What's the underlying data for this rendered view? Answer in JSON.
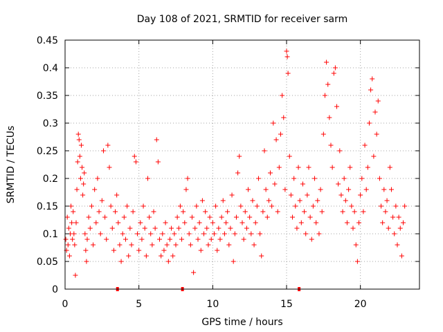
{
  "chart_data": {
    "type": "scatter",
    "title": "Day 108 of 2021, SRMTID for receiver sarm",
    "xlabel": "GPS time / hours",
    "ylabel": "SRMTID / TECUs",
    "xlim": [
      0,
      24
    ],
    "ylim": [
      0,
      0.45
    ],
    "x_ticks": [
      0,
      5,
      10,
      15,
      20
    ],
    "x_tick_labels": [
      "0",
      "5",
      "10",
      "15",
      "20"
    ],
    "y_ticks": [
      0,
      0.05,
      0.1,
      0.15,
      0.2,
      0.25,
      0.3,
      0.35,
      0.4,
      0.45
    ],
    "y_tick_labels": [
      "0",
      "0.05",
      "0.1",
      "0.15",
      "0.2",
      "0.25",
      "0.3",
      "0.35",
      "0.4",
      "0.45"
    ],
    "grid": true,
    "marker": "+",
    "color": "#ff0000",
    "zero_markers_x": [
      3.55,
      7.95,
      15.85
    ],
    "series": [
      {
        "name": "SRMTID",
        "points": [
          [
            0.05,
            0.09
          ],
          [
            0.1,
            0.07
          ],
          [
            0.15,
            0.13
          ],
          [
            0.2,
            0.08
          ],
          [
            0.25,
            0.11
          ],
          [
            0.3,
            0.06
          ],
          [
            0.35,
            0.1
          ],
          [
            0.4,
            0.15
          ],
          [
            0.45,
            0.12
          ],
          [
            0.5,
            0.09
          ],
          [
            0.55,
            0.14
          ],
          [
            0.6,
            0.1
          ],
          [
            0.65,
            0.08
          ],
          [
            0.7,
            0.025
          ],
          [
            0.75,
            0.12
          ],
          [
            0.8,
            0.18
          ],
          [
            0.85,
            0.23
          ],
          [
            0.9,
            0.28
          ],
          [
            0.95,
            0.27
          ],
          [
            1.0,
            0.24
          ],
          [
            1.05,
            0.2
          ],
          [
            1.1,
            0.26
          ],
          [
            1.15,
            0.22
          ],
          [
            1.2,
            0.17
          ],
          [
            1.25,
            0.19
          ],
          [
            1.3,
            0.21
          ],
          [
            1.35,
            0.1
          ],
          [
            1.4,
            0.07
          ],
          [
            1.45,
            0.05
          ],
          [
            1.5,
            0.09
          ],
          [
            1.6,
            0.13
          ],
          [
            1.7,
            0.11
          ],
          [
            1.8,
            0.15
          ],
          [
            1.9,
            0.08
          ],
          [
            2.0,
            0.18
          ],
          [
            2.1,
            0.12
          ],
          [
            2.2,
            0.2
          ],
          [
            2.3,
            0.14
          ],
          [
            2.4,
            0.1
          ],
          [
            2.5,
            0.16
          ],
          [
            2.6,
            0.25
          ],
          [
            2.7,
            0.13
          ],
          [
            2.8,
            0.09
          ],
          [
            2.9,
            0.26
          ],
          [
            3.0,
            0.22
          ],
          [
            3.1,
            0.15
          ],
          [
            3.2,
            0.11
          ],
          [
            3.3,
            0.07
          ],
          [
            3.4,
            0.14
          ],
          [
            3.5,
            0.17
          ],
          [
            3.6,
            0.12
          ],
          [
            3.7,
            0.08
          ],
          [
            3.8,
            0.05
          ],
          [
            3.9,
            0.1
          ],
          [
            4.0,
            0.13
          ],
          [
            4.1,
            0.09
          ],
          [
            4.2,
            0.15
          ],
          [
            4.3,
            0.06
          ],
          [
            4.4,
            0.11
          ],
          [
            4.5,
            0.08
          ],
          [
            4.6,
            0.14
          ],
          [
            4.7,
            0.24
          ],
          [
            4.8,
            0.23
          ],
          [
            4.9,
            0.1
          ],
          [
            5.0,
            0.07
          ],
          [
            5.1,
            0.12
          ],
          [
            5.2,
            0.09
          ],
          [
            5.3,
            0.15
          ],
          [
            5.4,
            0.11
          ],
          [
            5.5,
            0.06
          ],
          [
            5.6,
            0.2
          ],
          [
            5.7,
            0.13
          ],
          [
            5.8,
            0.1
          ],
          [
            5.9,
            0.08
          ],
          [
            6.0,
            0.14
          ],
          [
            6.1,
            0.11
          ],
          [
            6.2,
            0.27
          ],
          [
            6.3,
            0.23
          ],
          [
            6.4,
            0.09
          ],
          [
            6.5,
            0.06
          ],
          [
            6.6,
            0.1
          ],
          [
            6.7,
            0.07
          ],
          [
            6.8,
            0.12
          ],
          [
            6.9,
            0.08
          ],
          [
            7.0,
            0.05
          ],
          [
            7.1,
            0.09
          ],
          [
            7.2,
            0.11
          ],
          [
            7.3,
            0.06
          ],
          [
            7.4,
            0.1
          ],
          [
            7.5,
            0.08
          ],
          [
            7.6,
            0.13
          ],
          [
            7.7,
            0.11
          ],
          [
            7.8,
            0.15
          ],
          [
            7.9,
            0.09
          ],
          [
            8.0,
            0.14
          ],
          [
            8.1,
            0.12
          ],
          [
            8.2,
            0.18
          ],
          [
            8.3,
            0.2
          ],
          [
            8.4,
            0.1
          ],
          [
            8.5,
            0.08
          ],
          [
            8.6,
            0.13
          ],
          [
            8.7,
            0.03
          ],
          [
            8.8,
            0.11
          ],
          [
            8.9,
            0.15
          ],
          [
            9.0,
            0.09
          ],
          [
            9.1,
            0.12
          ],
          [
            9.2,
            0.07
          ],
          [
            9.3,
            0.16
          ],
          [
            9.4,
            0.1
          ],
          [
            9.5,
            0.14
          ],
          [
            9.6,
            0.11
          ],
          [
            9.7,
            0.08
          ],
          [
            9.8,
            0.13
          ],
          [
            9.9,
            0.09
          ],
          [
            10.0,
            0.12
          ],
          [
            10.1,
            0.1
          ],
          [
            10.2,
            0.15
          ],
          [
            10.3,
            0.07
          ],
          [
            10.4,
            0.11
          ],
          [
            10.5,
            0.09
          ],
          [
            10.6,
            0.13
          ],
          [
            10.7,
            0.16
          ],
          [
            10.8,
            0.1
          ],
          [
            10.9,
            0.12
          ],
          [
            11.0,
            0.14
          ],
          [
            11.1,
            0.08
          ],
          [
            11.2,
            0.11
          ],
          [
            11.3,
            0.17
          ],
          [
            11.4,
            0.05
          ],
          [
            11.5,
            0.1
          ],
          [
            11.6,
            0.13
          ],
          [
            11.7,
            0.21
          ],
          [
            11.8,
            0.24
          ],
          [
            11.9,
            0.15
          ],
          [
            12.0,
            0.12
          ],
          [
            12.1,
            0.09
          ],
          [
            12.2,
            0.14
          ],
          [
            12.3,
            0.11
          ],
          [
            12.4,
            0.18
          ],
          [
            12.5,
            0.13
          ],
          [
            12.6,
            0.1
          ],
          [
            12.7,
            0.16
          ],
          [
            12.8,
            0.08
          ],
          [
            12.9,
            0.12
          ],
          [
            13.0,
            0.15
          ],
          [
            13.1,
            0.2
          ],
          [
            13.2,
            0.1
          ],
          [
            13.3,
            0.06
          ],
          [
            13.4,
            0.14
          ],
          [
            13.5,
            0.25
          ],
          [
            13.6,
            0.18
          ],
          [
            13.7,
            0.13
          ],
          [
            13.8,
            0.16
          ],
          [
            13.9,
            0.21
          ],
          [
            14.0,
            0.15
          ],
          [
            14.1,
            0.3
          ],
          [
            14.2,
            0.19
          ],
          [
            14.3,
            0.27
          ],
          [
            14.4,
            0.14
          ],
          [
            14.5,
            0.22
          ],
          [
            14.6,
            0.28
          ],
          [
            14.7,
            0.35
          ],
          [
            14.8,
            0.31
          ],
          [
            14.9,
            0.18
          ],
          [
            15.0,
            0.43
          ],
          [
            15.05,
            0.42
          ],
          [
            15.1,
            0.39
          ],
          [
            15.2,
            0.24
          ],
          [
            15.3,
            0.17
          ],
          [
            15.4,
            0.13
          ],
          [
            15.5,
            0.2
          ],
          [
            15.6,
            0.15
          ],
          [
            15.7,
            0.11
          ],
          [
            15.8,
            0.22
          ],
          [
            15.9,
            0.16
          ],
          [
            16.0,
            0.12
          ],
          [
            16.1,
            0.19
          ],
          [
            16.2,
            0.14
          ],
          [
            16.3,
            0.1
          ],
          [
            16.4,
            0.17
          ],
          [
            16.5,
            0.22
          ],
          [
            16.6,
            0.13
          ],
          [
            16.7,
            0.09
          ],
          [
            16.8,
            0.15
          ],
          [
            16.9,
            0.2
          ],
          [
            17.0,
            0.12
          ],
          [
            17.1,
            0.16
          ],
          [
            17.2,
            0.1
          ],
          [
            17.3,
            0.18
          ],
          [
            17.4,
            0.14
          ],
          [
            17.5,
            0.28
          ],
          [
            17.6,
            0.35
          ],
          [
            17.7,
            0.41
          ],
          [
            17.8,
            0.37
          ],
          [
            17.9,
            0.31
          ],
          [
            18.0,
            0.26
          ],
          [
            18.1,
            0.22
          ],
          [
            18.2,
            0.39
          ],
          [
            18.3,
            0.4
          ],
          [
            18.4,
            0.33
          ],
          [
            18.5,
            0.19
          ],
          [
            18.6,
            0.25
          ],
          [
            18.7,
            0.17
          ],
          [
            18.8,
            0.14
          ],
          [
            18.9,
            0.2
          ],
          [
            19.0,
            0.16
          ],
          [
            19.1,
            0.12
          ],
          [
            19.2,
            0.18
          ],
          [
            19.3,
            0.22
          ],
          [
            19.4,
            0.15
          ],
          [
            19.5,
            0.11
          ],
          [
            19.6,
            0.14
          ],
          [
            19.7,
            0.08
          ],
          [
            19.8,
            0.05
          ],
          [
            19.9,
            0.12
          ],
          [
            20.0,
            0.17
          ],
          [
            20.1,
            0.2
          ],
          [
            20.2,
            0.14
          ],
          [
            20.3,
            0.26
          ],
          [
            20.4,
            0.18
          ],
          [
            20.5,
            0.22
          ],
          [
            20.6,
            0.3
          ],
          [
            20.7,
            0.36
          ],
          [
            20.8,
            0.38
          ],
          [
            20.9,
            0.24
          ],
          [
            21.0,
            0.32
          ],
          [
            21.1,
            0.28
          ],
          [
            21.2,
            0.34
          ],
          [
            21.3,
            0.2
          ],
          [
            21.4,
            0.15
          ],
          [
            21.5,
            0.12
          ],
          [
            21.6,
            0.18
          ],
          [
            21.7,
            0.14
          ],
          [
            21.8,
            0.16
          ],
          [
            21.9,
            0.11
          ],
          [
            22.0,
            0.22
          ],
          [
            22.1,
            0.18
          ],
          [
            22.2,
            0.13
          ],
          [
            22.3,
            0.1
          ],
          [
            22.4,
            0.15
          ],
          [
            22.5,
            0.08
          ],
          [
            22.6,
            0.13
          ],
          [
            22.7,
            0.11
          ],
          [
            22.8,
            0.06
          ],
          [
            22.9,
            0.12
          ],
          [
            23.0,
            0.15
          ]
        ]
      }
    ]
  }
}
